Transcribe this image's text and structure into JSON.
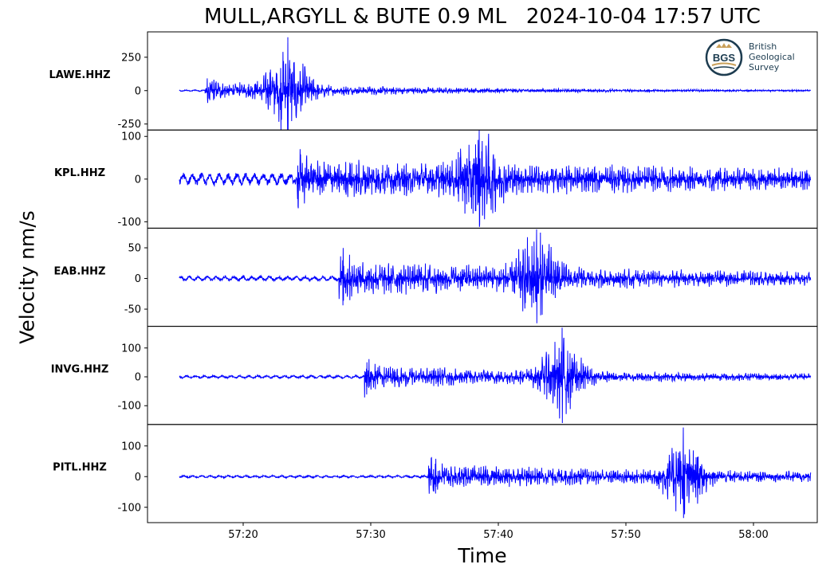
{
  "chart_data": {
    "type": "line",
    "title": "MULL,ARGYLL & BUTE 0.9 ML   2024-10-04 17:57 UTC",
    "xlabel": "Time",
    "ylabel": "Velocity nm/s",
    "x_range_seconds_after_1757": [
      12.5,
      65
    ],
    "x_ticks": [
      "57:20",
      "57:30",
      "57:40",
      "57:50",
      "58:00"
    ],
    "x_tick_values": [
      20,
      30,
      40,
      50,
      60
    ],
    "trace_start": 15,
    "trace_end": 64.5,
    "line_color": "#0000ff",
    "panels": [
      {
        "station": "LAWE.HHZ",
        "ylim": [
          -295,
          440
        ],
        "yticks": [
          250,
          0,
          -250
        ],
        "ytick_labels": [
          "250",
          "0",
          "-250"
        ],
        "onset": 17.0,
        "peak_time": 23.5,
        "peak_amp": 400,
        "min_amp": -340,
        "noise": 6,
        "coda_level": 70,
        "decay": 0.06
      },
      {
        "station": "KPL.HHZ",
        "ylim": [
          -115,
          115
        ],
        "yticks": [
          100,
          0,
          -100
        ],
        "ytick_labels": [
          "100",
          "0",
          "-100"
        ],
        "onset": 24.2,
        "peak_time": 38.5,
        "peak_amp": 115,
        "min_amp": -112,
        "noise": 14,
        "coda_level": 45,
        "decay": 0.02
      },
      {
        "station": "EAB.HHZ",
        "ylim": [
          -78,
          82
        ],
        "yticks": [
          50,
          0,
          -50
        ],
        "ytick_labels": [
          "50",
          "0",
          "-50"
        ],
        "onset": 27.5,
        "peak_time": 43.0,
        "peak_amp": 80,
        "min_amp": -73,
        "noise": 4,
        "coda_level": 30,
        "decay": 0.03
      },
      {
        "station": "INVG.HHZ",
        "ylim": [
          -165,
          175
        ],
        "yticks": [
          100,
          0,
          -100
        ],
        "ytick_labels": [
          "100",
          "0",
          "-100"
        ],
        "onset": 29.5,
        "peak_time": 45.0,
        "peak_amp": 170,
        "min_amp": -160,
        "noise": 5,
        "coda_level": 40,
        "decay": 0.04
      },
      {
        "station": "PITL.HHZ",
        "ylim": [
          -150,
          170
        ],
        "yticks": [
          100,
          0,
          -100
        ],
        "ytick_labels": [
          "100",
          "0",
          "-100"
        ],
        "onset": 34.5,
        "peak_time": 54.5,
        "peak_amp": 160,
        "min_amp": -135,
        "noise": 4,
        "coda_level": 40,
        "decay": 0.03
      }
    ]
  },
  "logo": {
    "abbr": "BGS",
    "line1": "British",
    "line2": "Geological",
    "line3": "Survey"
  }
}
